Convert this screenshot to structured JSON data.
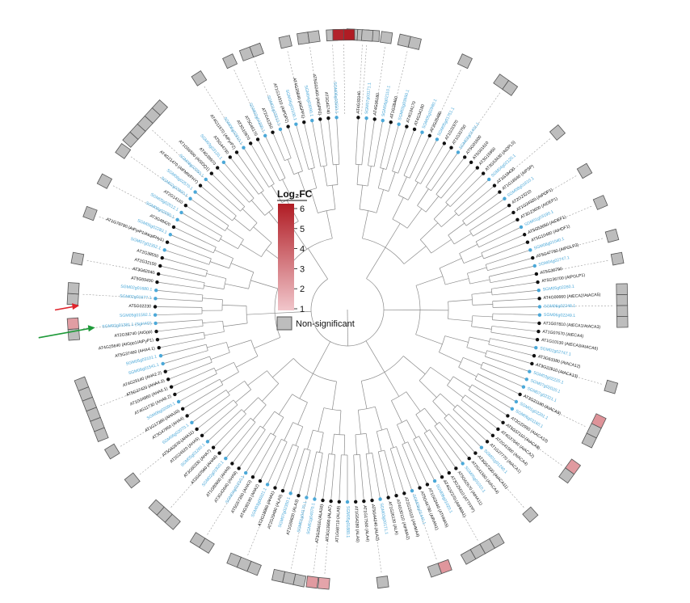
{
  "legend": {
    "title": "Log₂FC",
    "ticks": [
      "6",
      "5",
      "4",
      "3",
      "2",
      "1"
    ],
    "ns_label": "Non-significant",
    "gradient_high": "#b01c24",
    "gradient_low": "#f1c6cb",
    "ns_color": "#bdbdbd"
  },
  "colors": {
    "at_node": "#111111",
    "sm_node": "#4ba8d8",
    "branch": "#8a8a8a",
    "box_stroke": "#555555",
    "arrow_red": "#e0242c",
    "arrow_green": "#1f9a3a"
  },
  "leaves": [
    {
      "t": "AT4G33140",
      "sp": "at"
    },
    {
      "t": "SGM07g03171.1",
      "sp": "sm"
    },
    {
      "t": "AT4G36180",
      "sp": "at"
    },
    {
      "t": "SGM06g02110.1",
      "sp": "sm"
    },
    {
      "t": "AT1G28460",
      "sp": "at"
    },
    {
      "t": "SGM03g03660.1",
      "sp": "sm"
    },
    {
      "t": "AT4G34170",
      "sp": "at"
    },
    {
      "t": "AT4G34180",
      "sp": "at"
    },
    {
      "t": "SGM05g02980.1",
      "sp": "sm"
    },
    {
      "t": "AT2G25480",
      "sp": "at"
    },
    {
      "t": "SGM05g01751.1",
      "sp": "sm"
    },
    {
      "t": "AT1G31970",
      "sp": "at"
    },
    {
      "t": "AT1G32750",
      "sp": "at"
    },
    {
      "t": "SGM02g01401.1",
      "sp": "sm"
    },
    {
      "t": "AT5G01600",
      "sp": "at"
    },
    {
      "t": "AT5G01610",
      "sp": "at"
    },
    {
      "t": "AT3G15950",
      "sp": "at"
    },
    {
      "t": "AT3G53430 (AtDPL5)",
      "sp": "at"
    },
    {
      "t": "SGM04g02120.1",
      "sp": "sm"
    },
    {
      "t": "AT1G19430",
      "sp": "at"
    },
    {
      "t": "AT1G18640 (AtPSP)",
      "sp": "at"
    },
    {
      "t": "SGM08g01610.1",
      "sp": "sm"
    },
    {
      "t": "AT2G23210",
      "sp": "at"
    },
    {
      "t": "AT1G24320 (AtPDP1)",
      "sp": "at"
    },
    {
      "t": "AT3G23600 (AtDEP1)",
      "sp": "at"
    },
    {
      "t": "SGM01g03190.1",
      "sp": "sm"
    },
    {
      "t": "AT5G53050 (AtDEF1)",
      "sp": "at"
    },
    {
      "t": "AT5G10480 (AtHDF1)",
      "sp": "at"
    },
    {
      "t": "SGM08g01040.1",
      "sp": "sm"
    },
    {
      "t": "AT5G47760 (AtPGLP2)",
      "sp": "at"
    },
    {
      "t": "SGM04g02747.1",
      "sp": "sm"
    },
    {
      "t": "AT5G36790",
      "sp": "at"
    },
    {
      "t": "AT5G36700 (AtPGLP1)",
      "sp": "at"
    },
    {
      "t": "SGM05g02260.1",
      "sp": "sm"
    },
    {
      "t": "AT4G00660 (AtECA2/AtACA5)",
      "sp": "at"
    },
    {
      "t": "SGM06g02248.1",
      "sp": "sm"
    },
    {
      "t": "SGM06g02249.1",
      "sp": "sm"
    },
    {
      "t": "AT1G07810 (AtECA1/AtACA3)",
      "sp": "at"
    },
    {
      "t": "AT1G07670 (AtECA4)",
      "sp": "at"
    },
    {
      "t": "AT1G10130 (AtECA3/AtACA6)",
      "sp": "at"
    },
    {
      "t": "SGM02g02747.1",
      "sp": "sm"
    },
    {
      "t": "AT3G63380 (AtACA12)",
      "sp": "at"
    },
    {
      "t": "AT3G22910 (AtACA13)",
      "sp": "at"
    },
    {
      "t": "SGM03g02220.1",
      "sp": "sm"
    },
    {
      "t": "SGM07g02020.1",
      "sp": "sm"
    },
    {
      "t": "SGM07g02321.1",
      "sp": "sm"
    },
    {
      "t": "AT3G21180 (AtACA9)",
      "sp": "at"
    },
    {
      "t": "SGM01g02201.1",
      "sp": "sm"
    },
    {
      "t": "SGM06g01160.1",
      "sp": "sm"
    },
    {
      "t": "AT2G22950 (AtACA10)",
      "sp": "at"
    },
    {
      "t": "AT5G57110 (AtACA8)",
      "sp": "at"
    },
    {
      "t": "AT4G37640 (AtACA2)",
      "sp": "at"
    },
    {
      "t": "AT2G41560 (AtACA4)",
      "sp": "at"
    },
    {
      "t": "AT1G27770 (AtACA1)",
      "sp": "at"
    },
    {
      "t": "SGM01g01240.1",
      "sp": "sm"
    },
    {
      "t": "AT3G57330 (AtACA11)",
      "sp": "at"
    },
    {
      "t": "AT2G41560 (AtACA4)",
      "sp": "at"
    },
    {
      "t": "SGM05g01010.1",
      "sp": "sm"
    },
    {
      "t": "AT5G62670 (AtHA11)",
      "sp": "at"
    },
    {
      "t": "AT3G25610 (ATTFPP)",
      "sp": "at"
    },
    {
      "t": "AT4G37270 (AtHMA1)",
      "sp": "at"
    },
    {
      "t": "SGM08g01020.1",
      "sp": "sm"
    },
    {
      "t": "AT1G63440 (ATHMA5)",
      "sp": "at"
    },
    {
      "t": "AT5G44790 (AtRAN1)",
      "sp": "at"
    },
    {
      "t": "SGM08g01440.1",
      "sp": "sm"
    },
    {
      "t": "AT2G19110 (AtHMA4)",
      "sp": "at"
    },
    {
      "t": "AT4G30110 (AtHMA2)",
      "sp": "at"
    },
    {
      "t": "AT1G26130 (ALA)",
      "sp": "at"
    },
    {
      "t": "SGM03g00171.1",
      "sp": "sm"
    },
    {
      "t": "AT5G44240 (ALA2)",
      "sp": "at"
    },
    {
      "t": "AT1G17500 (ALA4)",
      "sp": "at"
    },
    {
      "t": "AT1G54280 (ALA6)",
      "sp": "at"
    },
    {
      "t": "SGM05g01880.1",
      "sp": "sm"
    },
    {
      "t": "AT1G68710 (ALA9)",
      "sp": "at"
    },
    {
      "t": "AT3G13900 (ALA7)",
      "sp": "at"
    },
    {
      "t": "AT3G25610 (ALA10)",
      "sp": "at"
    },
    {
      "t": "SGM01g04070.1",
      "sp": "sm"
    },
    {
      "t": "SGM01g04170.1",
      "sp": "sm"
    },
    {
      "t": "AT1G59820 (ALA3)",
      "sp": "at"
    },
    {
      "t": "SGM07g02350.1",
      "sp": "sm"
    },
    {
      "t": "AT2G29490 (ALA5)",
      "sp": "at"
    },
    {
      "t": "AT2G18960 (AHA1)",
      "sp": "at"
    },
    {
      "t": "SGM03g00321.1",
      "sp": "sm"
    },
    {
      "t": "AT4G30190 (AHA2)",
      "sp": "at"
    },
    {
      "t": "AT5G57350 (AHA3)",
      "sp": "at"
    },
    {
      "t": "SGM04g01010.1",
      "sp": "sm"
    },
    {
      "t": "AT3G42640 (AHA8)",
      "sp": "at"
    },
    {
      "t": "AT1G80660 (AHA9)",
      "sp": "at"
    },
    {
      "t": "SGM02g01920.1",
      "sp": "sm"
    },
    {
      "t": "AT2G07560 (AHA6)",
      "sp": "at"
    },
    {
      "t": "AT3G60330 (AHA7)",
      "sp": "at"
    },
    {
      "t": "SGM05g01260.1",
      "sp": "sm"
    },
    {
      "t": "AT2G24520 (AHA5)",
      "sp": "at"
    },
    {
      "t": "AT5G62670 (AHA11)",
      "sp": "at"
    },
    {
      "t": "SGM06g02070.1",
      "sp": "sm"
    },
    {
      "t": "AT3G47950 (AHA4)",
      "sp": "at"
    },
    {
      "t": "AT1G17260 (AHA10)",
      "sp": "at"
    },
    {
      "t": "SGM06g02090.1",
      "sp": "sm"
    },
    {
      "t": "AT4G11730 (AHA6.2)",
      "sp": "at"
    },
    {
      "t": "AT1G04860 (AHA6.1)",
      "sp": "at"
    },
    {
      "t": "AT5G37420 (AHA4.2)",
      "sp": "at"
    },
    {
      "t": "AT4G29140 (AHA2.2)",
      "sp": "at"
    },
    {
      "t": "SGM08g01541.1",
      "sp": "sm"
    },
    {
      "t": "SGM05g03101.1",
      "sp": "sm"
    },
    {
      "t": "AT5G37460 (AHA4.1)",
      "sp": "at"
    },
    {
      "t": "AT4G25640 (AtGpp1/AtPyP1)",
      "sp": "at"
    },
    {
      "t": "AT2G38740 (AtGpp)",
      "sp": "at"
    },
    {
      "t": "SGM02g01381.1 (SgHAD)",
      "sp": "sm"
    },
    {
      "t": "SGM05g01592.1",
      "sp": "sm"
    },
    {
      "t": "AT5G02230",
      "sp": "at"
    },
    {
      "t": "SGM02g01677.1",
      "sp": "sm"
    },
    {
      "t": "SGM02g01680.1",
      "sp": "sm"
    },
    {
      "t": "AT5G59490",
      "sp": "at"
    },
    {
      "t": "AT3G62040",
      "sp": "at"
    },
    {
      "t": "AT2G32150",
      "sp": "at"
    },
    {
      "t": "AT2G38550",
      "sp": "at"
    },
    {
      "t": "SGM07g02352.1",
      "sp": "sm"
    },
    {
      "t": "AT1G79790 (AtPyrP1/AtcpFHy1)",
      "sp": "at"
    },
    {
      "t": "SGM05g02283.1",
      "sp": "sm"
    },
    {
      "t": "AT3G48420",
      "sp": "at"
    },
    {
      "t": "SGM08g02050.1",
      "sp": "sm"
    },
    {
      "t": "SGM05g02012.1",
      "sp": "sm"
    },
    {
      "t": "AT2G14110",
      "sp": "at"
    },
    {
      "t": "SGM02g03900.1",
      "sp": "sm"
    },
    {
      "t": "SGM06g02570.1",
      "sp": "sm"
    },
    {
      "t": "AT4G21470 (AtFMN/FHY)",
      "sp": "at"
    },
    {
      "t": "SGM08g02050.1",
      "sp": "sm"
    },
    {
      "t": "AT1G56500 (AtSOQ1)",
      "sp": "at"
    },
    {
      "t": "AT4G39970",
      "sp": "at"
    },
    {
      "t": "SGM03g03120.1",
      "sp": "sm"
    },
    {
      "t": "AT5G44730",
      "sp": "at"
    },
    {
      "t": "AT4G11570 (AtPyrP2)",
      "sp": "at"
    },
    {
      "t": "SGM06g02910.1",
      "sp": "sm"
    },
    {
      "t": "AT3G10970",
      "sp": "at"
    },
    {
      "t": "AT5G45170",
      "sp": "at"
    },
    {
      "t": "SGM02g04300.1",
      "sp": "sm"
    },
    {
      "t": "AT2G41250",
      "sp": "at"
    },
    {
      "t": "SGM01g03310.1",
      "sp": "sm"
    },
    {
      "t": "AT1G14310 (AtPDP2)",
      "sp": "at"
    },
    {
      "t": "SGM06g03100.1",
      "sp": "sm"
    },
    {
      "t": "AT4G25840 (AtGPP1)",
      "sp": "at"
    },
    {
      "t": "SGM04g03090.1",
      "sp": "sm"
    },
    {
      "t": "AT5G02400 (AtGPP2)",
      "sp": "at"
    },
    {
      "t": "AT3G45740",
      "sp": "at"
    },
    {
      "t": "SGM06g03550.1",
      "sp": "sm"
    }
  ],
  "heatmap": [
    {
      "l": 0,
      "v": [
        "ns",
        "ns",
        "ns"
      ]
    },
    {
      "l": 2,
      "v": [
        "ns"
      ]
    },
    {
      "l": 4,
      "v": [
        "ns",
        "ns"
      ]
    },
    {
      "l": 9,
      "v": [
        "ns"
      ]
    },
    {
      "l": 13,
      "v": [
        "ns",
        "ns"
      ]
    },
    {
      "l": 19,
      "v": [
        "ns"
      ]
    },
    {
      "l": 23,
      "v": [
        "ns"
      ]
    },
    {
      "l": 26,
      "v": [
        "ns"
      ]
    },
    {
      "l": 29,
      "v": [
        "ns"
      ]
    },
    {
      "l": 31,
      "v": [
        "ns"
      ]
    },
    {
      "l": 35,
      "v": [
        "ns",
        "ns",
        "ns",
        "ns"
      ]
    },
    {
      "l": 42,
      "v": [
        "ns"
      ]
    },
    {
      "l": 46,
      "v": [
        2.5,
        "ns",
        "ns"
      ]
    },
    {
      "l": 50,
      "v": [
        2.3,
        "ns"
      ]
    },
    {
      "l": 55,
      "v": [
        "ns"
      ]
    },
    {
      "l": 60,
      "v": [
        "ns",
        "ns",
        "ns",
        "ns"
      ]
    },
    {
      "l": 64,
      "v": [
        2.4,
        "ns"
      ]
    },
    {
      "l": 69,
      "v": [
        "ns"
      ]
    },
    {
      "l": 74,
      "v": [
        2.0
      ]
    },
    {
      "l": 75,
      "v": [
        2.3
      ]
    },
    {
      "l": 77,
      "v": [
        "ns",
        "ns",
        "ns"
      ]
    },
    {
      "l": 81,
      "v": [
        "ns",
        "ns",
        "ns"
      ]
    },
    {
      "l": 85,
      "v": [
        "ns",
        "ns"
      ]
    },
    {
      "l": 89,
      "v": [
        "ns",
        "ns",
        "ns"
      ]
    },
    {
      "l": 93,
      "v": [
        "ns"
      ]
    },
    {
      "l": 96,
      "v": [
        "ns"
      ]
    },
    {
      "l": 100,
      "v": [
        "ns",
        "ns",
        "ns",
        "ns",
        "ns",
        "ns"
      ]
    },
    {
      "l": 107,
      "v": [
        "ns",
        2.2
      ]
    },
    {
      "l": 110,
      "v": [
        "ns",
        "ns"
      ]
    },
    {
      "l": 113,
      "v": [
        "ns"
      ]
    },
    {
      "l": 117,
      "v": [
        "ns"
      ]
    },
    {
      "l": 120,
      "v": [
        "ns"
      ]
    },
    {
      "l": 123,
      "v": [
        "ns"
      ]
    },
    {
      "l": 126,
      "v": [
        "ns",
        "ns",
        "ns",
        "ns",
        "ns"
      ]
    },
    {
      "l": 132,
      "v": [
        "ns"
      ]
    },
    {
      "l": 135,
      "v": [
        "ns"
      ]
    },
    {
      "l": 137,
      "v": [
        "ns",
        "ns"
      ]
    },
    {
      "l": 140,
      "v": [
        "ns"
      ]
    },
    {
      "l": 142,
      "v": [
        "ns",
        "ns"
      ]
    },
    {
      "l": 144,
      "v": [
        "ns"
      ]
    },
    {
      "l": 145,
      "v": [
        5.8,
        6.2
      ]
    },
    {
      "l": 147,
      "v": [
        "ns"
      ]
    }
  ],
  "arrows": [
    "red",
    "green"
  ]
}
